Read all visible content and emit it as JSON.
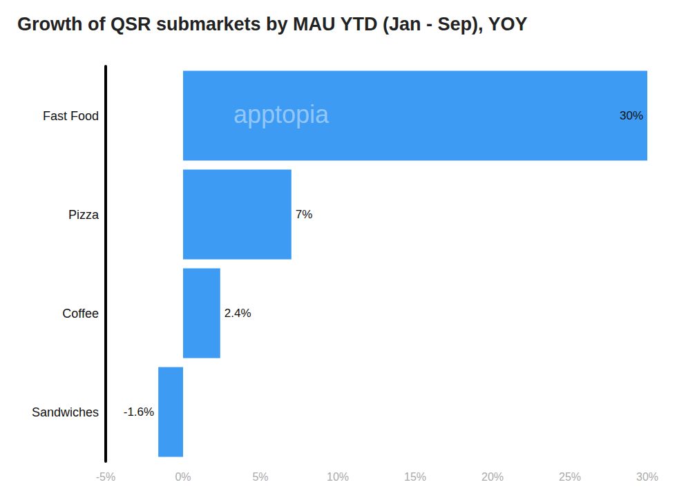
{
  "chart_data": {
    "type": "bar",
    "title": "Growth of QSR submarkets by MAU YTD (Jan - Sep), YOY",
    "orientation": "horizontal",
    "categories": [
      "Fast Food",
      "Pizza",
      "Coffee",
      "Sandwiches"
    ],
    "values": [
      30,
      7,
      2.4,
      -1.6
    ],
    "value_labels": [
      "30%",
      "7%",
      "2.4%",
      "-1.6%"
    ],
    "data_labels": true,
    "color": "#3d9bf4",
    "xlim": [
      -5,
      30
    ],
    "xticks": [
      {
        "value": -5,
        "label": "-5%"
      },
      {
        "value": 0,
        "label": "0%"
      },
      {
        "value": 5,
        "label": "5%"
      },
      {
        "value": 10,
        "label": "10%"
      },
      {
        "value": 15,
        "label": "15%"
      },
      {
        "value": 20,
        "label": "20%"
      },
      {
        "value": 25,
        "label": "25%"
      },
      {
        "value": 30,
        "label": "30%"
      }
    ],
    "grid": false,
    "annotations": [
      "apptopia"
    ]
  }
}
